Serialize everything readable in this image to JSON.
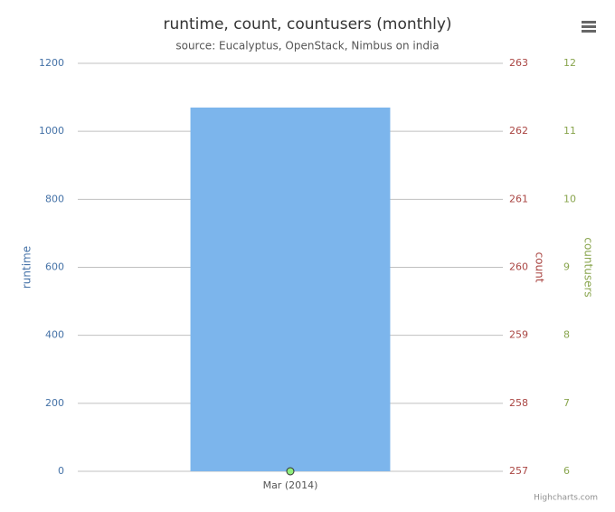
{
  "chart_data": {
    "type": "bar",
    "title": "runtime, count, countusers (monthly)",
    "subtitle": "source: Eucalyptus, OpenStack, Nimbus on india",
    "categories": [
      "Mar (2014)"
    ],
    "series": [
      {
        "type": "bar",
        "axis": "y",
        "color": "#7cb5ec",
        "values": [
          1070
        ]
      },
      {
        "type": "line",
        "axis": "y3",
        "color": "#90ed7d",
        "values": [
          6
        ]
      }
    ],
    "ylabel": "runtime",
    "ylim": [
      0,
      1200
    ],
    "yticks": [
      0,
      200,
      400,
      600,
      800,
      1000,
      1200
    ],
    "ycolor": "#4572a7",
    "y2label": "count",
    "y2lim": [
      257,
      263
    ],
    "y2ticks": [
      257,
      258,
      259,
      260,
      261,
      262,
      263
    ],
    "y2color": "#aa4643",
    "y3label": "countusers",
    "y3lim": [
      6,
      12
    ],
    "y3ticks": [
      6,
      7,
      8,
      9,
      10,
      11,
      12
    ],
    "y3color": "#89a54e",
    "grid": true,
    "credits": "Highcharts.com"
  }
}
